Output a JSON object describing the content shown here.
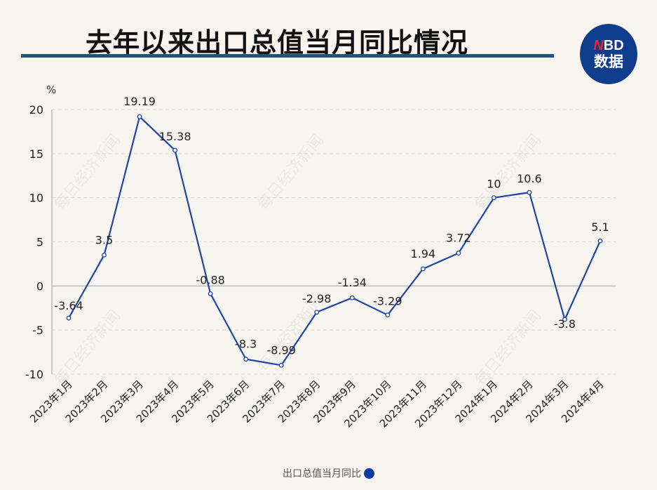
{
  "header": {
    "title": "去年以来出口总值当月同比情况",
    "logo_top": "BD",
    "logo_top_accent": "N",
    "logo_bottom": "数据"
  },
  "colors": {
    "line": "#1f45a8",
    "title_bar": "#1f4e9e",
    "logo_bg": "#0f3d8c",
    "legend_dot": "#0c3aa5"
  },
  "watermark": "每日经济新闻",
  "legend": {
    "label": "出口总值当月同比"
  },
  "chart_data": {
    "type": "line",
    "title": "去年以来出口总值当月同比情况",
    "xlabel": "",
    "ylabel": "%",
    "ylim": [
      -10,
      20
    ],
    "yticks": [
      20,
      15,
      10,
      5,
      0,
      -5,
      -10
    ],
    "grid": "horizontal dashed",
    "legend_position": "bottom",
    "categories": [
      "2023年1月",
      "2023年2月",
      "2023年3月",
      "2023年4月",
      "2023年5月",
      "2023年6月",
      "2023年7月",
      "2023年8月",
      "2023年9月",
      "2023年10月",
      "2023年11月",
      "2023年12月",
      "2024年1月",
      "2024年2月",
      "2024年3月",
      "2024年4月"
    ],
    "series": [
      {
        "name": "出口总值当月同比",
        "values": [
          -3.64,
          3.5,
          19.19,
          15.38,
          -0.88,
          -8.3,
          -8.99,
          -2.98,
          -1.34,
          -3.29,
          1.94,
          3.72,
          10,
          10.6,
          -3.8,
          5.1
        ],
        "labels": [
          "-3.64",
          "3.5",
          "19.19",
          "15.38",
          "-0.88",
          "-8.3",
          "-8.99",
          "-2.98",
          "-1.34",
          "-3.29",
          "1.94",
          "3.72",
          "10",
          "10.6",
          "-3.8",
          "5.1"
        ]
      }
    ]
  }
}
